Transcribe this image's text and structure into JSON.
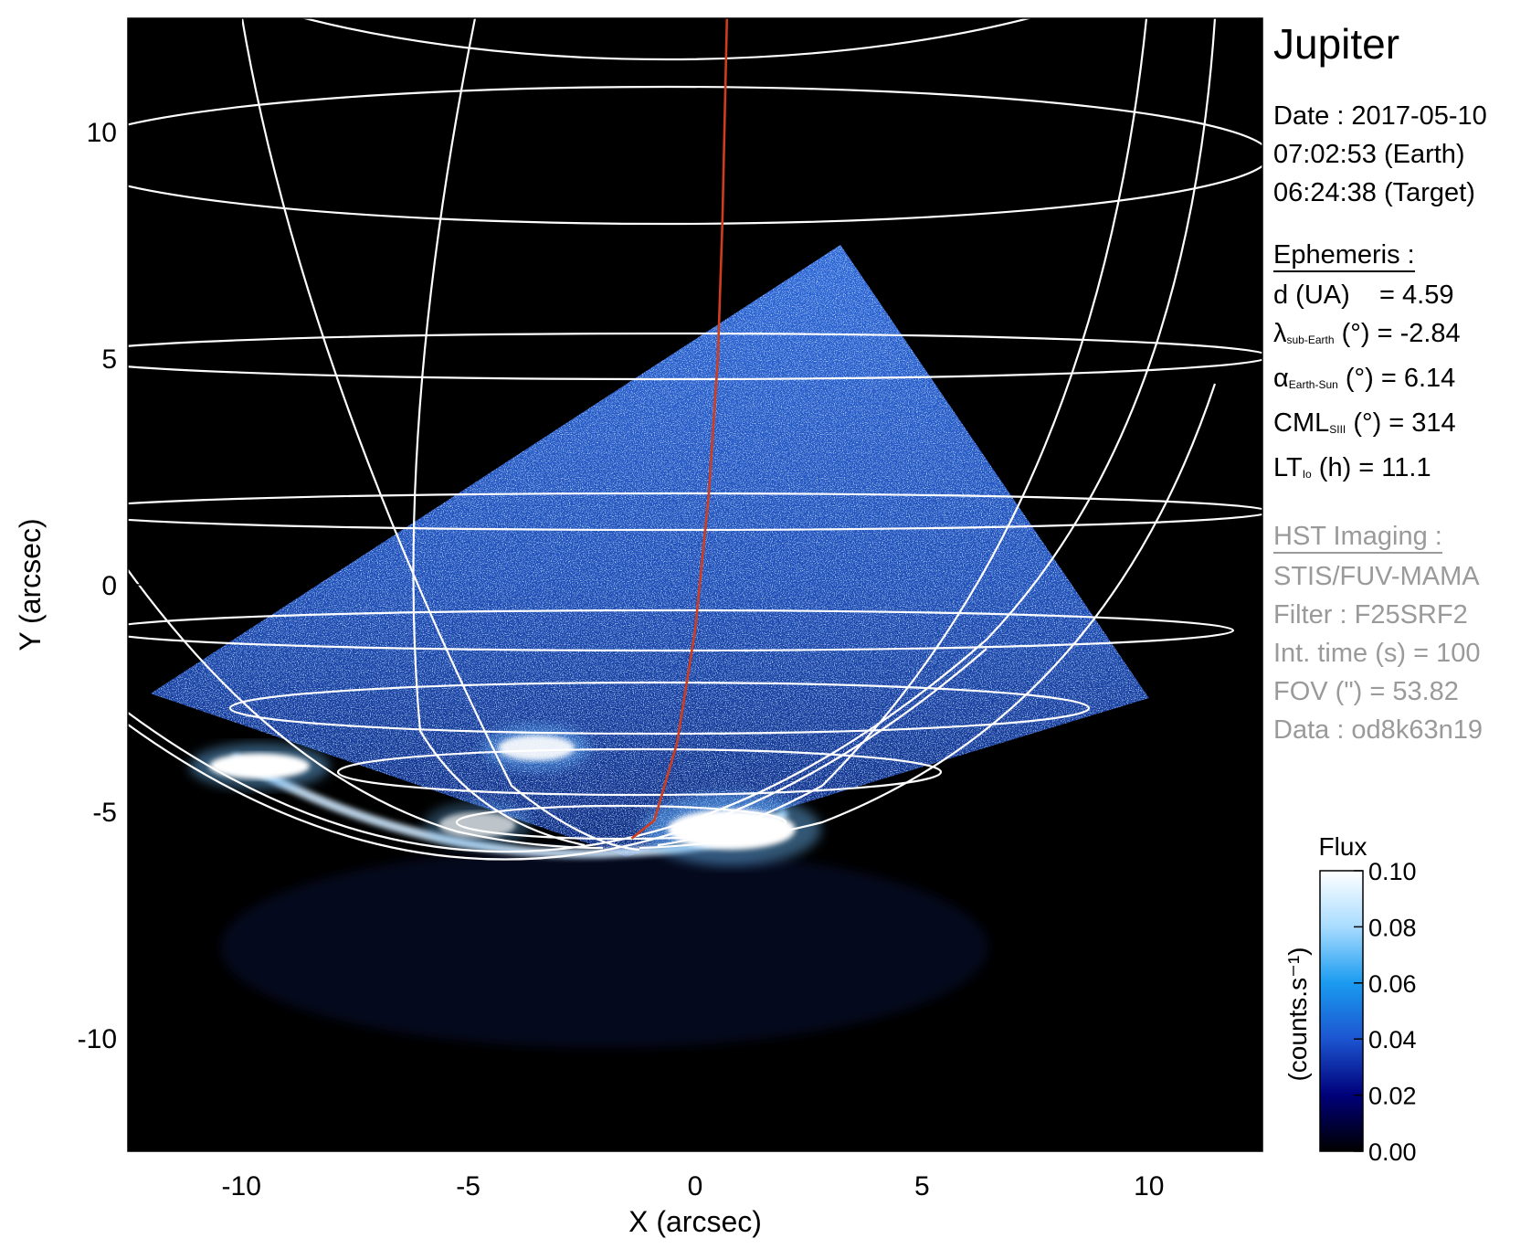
{
  "chart_data": {
    "type": "heatmap",
    "title": "Jupiter",
    "xlabel": "X (arcsec)",
    "ylabel": "Y (arcsec)",
    "xlim": [
      -12.5,
      12.5
    ],
    "ylim": [
      -12.5,
      12.5
    ],
    "x_ticks": [
      -10,
      -5,
      0,
      5,
      10
    ],
    "y_ticks": [
      10,
      5,
      0,
      -5,
      -10
    ],
    "grid": "planetographic latitude/longitude grid",
    "colorbar": {
      "title": "Flux",
      "label": "(counts.s⁻¹)",
      "range": [
        0.0,
        0.1
      ],
      "ticks": [
        "0.10",
        "0.08",
        "0.06",
        "0.04",
        "0.02",
        "0.00"
      ],
      "colors": [
        "#000000",
        "#00007a",
        "#1c55d0",
        "#1a9bf0",
        "#a8dcff",
        "#ffffff"
      ]
    },
    "observation_footprint_arcsec": [
      [
        -12.0,
        -2.4
      ],
      [
        3.2,
        7.5
      ],
      [
        10.0,
        -2.5
      ],
      [
        -1.5,
        -6.0
      ]
    ],
    "footpath_arcsec": [
      [
        0.7,
        12.5
      ],
      [
        0.6,
        8.0
      ],
      [
        0.5,
        5.0
      ],
      [
        0.3,
        2.0
      ],
      [
        0.0,
        -1.0
      ],
      [
        -0.4,
        -3.5
      ],
      [
        -0.9,
        -5.2
      ],
      [
        -1.4,
        -5.6
      ]
    ],
    "footpath_color": "#d03c1e",
    "emission_features_arcsec": [
      {
        "x": -9.6,
        "y": -4.0,
        "intensity": 1.0
      },
      {
        "x": -3.5,
        "y": -3.6,
        "intensity": 0.9
      },
      {
        "x": 0.8,
        "y": -5.4,
        "intensity": 1.0
      },
      {
        "x": -4.8,
        "y": -5.3,
        "intensity": 0.7
      }
    ]
  },
  "info": {
    "planet": "Jupiter",
    "date_line": "Date : 2017-05-10",
    "earth_time": "07:02:53 (Earth)",
    "target_time": "06:24:38 (Target)",
    "ephemeris": {
      "header": "Ephemeris :",
      "d": {
        "name": "d (UA)",
        "value": "= 4.59"
      },
      "lambda": {
        "sym": "λ",
        "sub": "sub-Earth",
        "unit": "(°)",
        "value": "= -2.84"
      },
      "alpha": {
        "sym": "α",
        "sub": "Earth-Sun",
        "unit": "(°)",
        "value": "= 6.14"
      },
      "cml": {
        "sym": "CML",
        "sub": "SIII",
        "unit": "(°)",
        "value": "= 314"
      },
      "lt": {
        "sym": "LT",
        "sub": "Io",
        "unit": "(h)",
        "value": "= 11.1"
      }
    },
    "hst": {
      "header": "HST Imaging :",
      "instrument": "STIS/FUV-MAMA",
      "filter": "Filter : F25SRF2",
      "int_time": "Int. time (s) = 100",
      "fov": "FOV (\") = 53.82",
      "data": "Data : od8k63n19"
    }
  }
}
